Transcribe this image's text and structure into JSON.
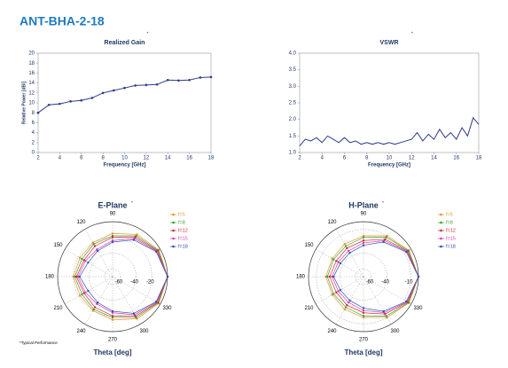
{
  "title": "ANT-BHA-2-18",
  "footnote": "*Typical Performance",
  "chart_data": [
    {
      "type": "line",
      "title": "Realized Gain",
      "title_mark": "*",
      "xlabel": "Frequency [GHz]",
      "ylabel": "Relative Power [dBi]",
      "x": [
        2,
        3,
        4,
        5,
        6,
        7,
        8,
        9,
        10,
        11,
        12,
        13,
        14,
        15,
        16,
        17,
        18
      ],
      "values": [
        8,
        9.6,
        9.8,
        10.3,
        10.5,
        11,
        12,
        12.5,
        13,
        13.5,
        13.6,
        13.7,
        14.6,
        14.5,
        14.6,
        15.1,
        15.2
      ],
      "color": "#2e3a8c",
      "markers": true,
      "xlim": [
        2,
        18
      ],
      "xticks": [
        2,
        4,
        6,
        8,
        10,
        12,
        14,
        16,
        18
      ],
      "ylim": [
        0,
        20
      ],
      "yticks": [
        0,
        2,
        4,
        6,
        8,
        10,
        12,
        14,
        16,
        18,
        20
      ]
    },
    {
      "type": "line",
      "title": "VSWR",
      "title_mark": "*",
      "xlabel": "Frequency [GHz]",
      "x": [
        2,
        2.5,
        3,
        3.5,
        4,
        4.5,
        5,
        5.5,
        6,
        6.5,
        7,
        7.5,
        8,
        8.5,
        9,
        9.5,
        10,
        10.5,
        11,
        11.5,
        12,
        12.5,
        13,
        13.5,
        14,
        14.5,
        15,
        15.5,
        16,
        16.5,
        17,
        17.5,
        18
      ],
      "values": [
        1.2,
        1.4,
        1.35,
        1.45,
        1.3,
        1.5,
        1.4,
        1.3,
        1.45,
        1.3,
        1.35,
        1.25,
        1.3,
        1.25,
        1.3,
        1.25,
        1.3,
        1.25,
        1.3,
        1.35,
        1.4,
        1.6,
        1.35,
        1.55,
        1.4,
        1.7,
        1.45,
        1.6,
        1.4,
        1.75,
        1.5,
        2.05,
        1.85
      ],
      "color": "#2e3a8c",
      "markers": false,
      "xlim": [
        2,
        18
      ],
      "xticks": [
        2,
        4,
        6,
        8,
        10,
        12,
        14,
        16,
        18
      ],
      "ylim": [
        1,
        4
      ],
      "yticks": [
        {
          "value": 1,
          "label": "1.0"
        },
        {
          "value": 1.5,
          "label": "1.5"
        },
        {
          "value": 2,
          "label": "2.0"
        },
        {
          "value": 2.5,
          "label": "2.5"
        },
        {
          "value": 3,
          "label": "3.0"
        },
        {
          "value": 3.5,
          "label": "3.5"
        },
        {
          "value": 4,
          "label": "4.0"
        }
      ]
    },
    {
      "type": "polar",
      "title": "E-Plane",
      "title_mark": "*",
      "xlabel": "Theta [deg]",
      "theta": [
        0,
        30,
        60,
        90,
        120,
        150,
        180,
        210,
        240,
        270,
        300,
        330
      ],
      "theta_ticks": [
        90,
        120,
        150,
        180,
        210,
        240,
        270,
        300,
        330
      ],
      "rlim": [
        -70,
        0
      ],
      "rticks": [
        -60,
        -40,
        -20
      ],
      "series": [
        {
          "name": "f=5",
          "color": "#e8902a",
          "values": [
            0,
            -2,
            -8,
            -15,
            -20,
            -22,
            -20,
            -22,
            -20,
            -15,
            -8,
            -2
          ]
        },
        {
          "name": "f=8",
          "color": "#3aa02e",
          "values": [
            0,
            -3,
            -10,
            -18,
            -22,
            -25,
            -22,
            -25,
            -22,
            -18,
            -10,
            -3
          ]
        },
        {
          "name": "f=12",
          "color": "#d6262e",
          "values": [
            0,
            -4,
            -12,
            -20,
            -25,
            -28,
            -24,
            -28,
            -25,
            -20,
            -12,
            -4
          ]
        },
        {
          "name": "f=15",
          "color": "#d43fb0",
          "values": [
            0,
            -5,
            -14,
            -24,
            -30,
            -30,
            -26,
            -30,
            -30,
            -24,
            -14,
            -5
          ]
        },
        {
          "name": "f=18",
          "color": "#2d4fb0",
          "values": [
            0,
            -6,
            -16,
            -26,
            -32,
            -34,
            -28,
            -34,
            -32,
            -26,
            -16,
            -6
          ]
        }
      ]
    },
    {
      "type": "polar",
      "title": "H-Plane",
      "title_mark": "*",
      "xlabel": "Theta [deg]",
      "theta": [
        0,
        30,
        60,
        90,
        120,
        150,
        180,
        210,
        240,
        270,
        300,
        330
      ],
      "theta_ticks": [
        90,
        120,
        150,
        180,
        210,
        240,
        270,
        300,
        330
      ],
      "rlim": [
        -70,
        0
      ],
      "rticks": [
        -60,
        -40,
        -10
      ],
      "series": [
        {
          "name": "f=5",
          "color": "#e8902a",
          "values": [
            0,
            -3,
            -10,
            -18,
            -22,
            -24,
            -22,
            -24,
            -22,
            -18,
            -10,
            -3
          ]
        },
        {
          "name": "f=8",
          "color": "#3aa02e",
          "values": [
            0,
            -4,
            -12,
            -20,
            -25,
            -26,
            -24,
            -26,
            -25,
            -20,
            -12,
            -4
          ]
        },
        {
          "name": "f=12",
          "color": "#d6262e",
          "values": [
            0,
            -5,
            -15,
            -24,
            -28,
            -30,
            -27,
            -30,
            -28,
            -24,
            -15,
            -5
          ]
        },
        {
          "name": "f=15",
          "color": "#d43fb0",
          "values": [
            0,
            -6,
            -17,
            -27,
            -32,
            -33,
            -30,
            -33,
            -32,
            -27,
            -17,
            -6
          ]
        },
        {
          "name": "f=18",
          "color": "#2d4fb0",
          "values": [
            0,
            -7,
            -19,
            -30,
            -35,
            -36,
            -32,
            -36,
            -35,
            -30,
            -19,
            -7
          ]
        }
      ]
    }
  ]
}
